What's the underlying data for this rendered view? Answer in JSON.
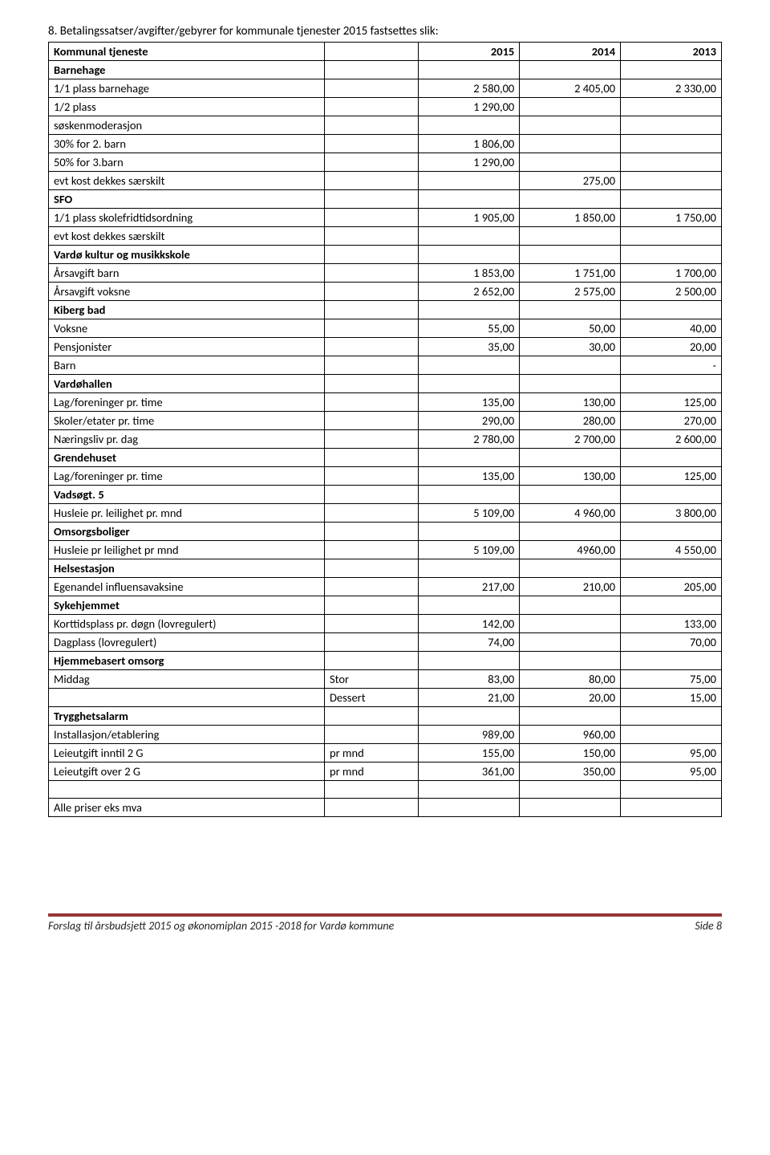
{
  "intro": "8. Betalingssatser/avgifter/gebyrer for kommunale tjenester 2015 fastsettes slik:",
  "header": {
    "c1": "Kommunal tjeneste",
    "c3": "2015",
    "c4": "2014",
    "c5": "2013"
  },
  "rows": [
    {
      "type": "section",
      "label": "Barnehage"
    },
    {
      "type": "data",
      "label": "1/1 plass barnehage",
      "v3": "2 580,00",
      "v4": "2 405,00",
      "v5": "2 330,00"
    },
    {
      "type": "data",
      "label": "1/2 plass",
      "v3": "1 290,00"
    },
    {
      "type": "label",
      "label": "søskenmoderasjon"
    },
    {
      "type": "data",
      "label": "30% for 2. barn",
      "v3": "1 806,00"
    },
    {
      "type": "data",
      "label": "50% for 3.barn",
      "v3": "1 290,00"
    },
    {
      "type": "data",
      "label": "evt kost dekkes særskilt",
      "v4": "275,00"
    },
    {
      "type": "section",
      "label": "SFO"
    },
    {
      "type": "data",
      "label": "1/1 plass skolefridtidsordning",
      "v3": "1 905,00",
      "v4": "1 850,00",
      "v5": "1 750,00"
    },
    {
      "type": "label",
      "label": "evt kost dekkes særskilt"
    },
    {
      "type": "section",
      "label": "Vardø kultur og musikkskole"
    },
    {
      "type": "data",
      "label": "Årsavgift barn",
      "v3": "1 853,00",
      "v4": "1 751,00",
      "v5": "1 700,00"
    },
    {
      "type": "data",
      "label": "Årsavgift voksne",
      "v3": "2 652,00",
      "v4": "2 575,00",
      "v5": "2 500,00"
    },
    {
      "type": "section",
      "label": "Kiberg bad"
    },
    {
      "type": "data",
      "label": "Voksne",
      "v3": "55,00",
      "v4": "50,00",
      "v5": "40,00"
    },
    {
      "type": "data",
      "label": "Pensjonister",
      "v3": "35,00",
      "v4": "30,00",
      "v5": "20,00"
    },
    {
      "type": "data",
      "label": "Barn",
      "v5": "-"
    },
    {
      "type": "section",
      "label": "Vardøhallen"
    },
    {
      "type": "data",
      "label": "Lag/foreninger pr. time",
      "v3": "135,00",
      "v4": "130,00",
      "v5": "125,00"
    },
    {
      "type": "data",
      "label": "Skoler/etater pr. time",
      "v3": "290,00",
      "v4": "280,00",
      "v5": "270,00"
    },
    {
      "type": "data",
      "label": "Næringsliv pr. dag",
      "v3": "2 780,00",
      "v4": "2 700,00",
      "v5": "2 600,00"
    },
    {
      "type": "section",
      "label": "Grendehuset"
    },
    {
      "type": "data",
      "label": "Lag/foreninger pr. time",
      "v3": "135,00",
      "v4": "130,00",
      "v5": "125,00"
    },
    {
      "type": "section",
      "label": "Vadsøgt. 5"
    },
    {
      "type": "data",
      "label": "Husleie pr. leilighet pr. mnd",
      "v3": "5 109,00",
      "v4": "4 960,00",
      "v5": "3 800,00"
    },
    {
      "type": "section",
      "label": "Omsorgsboliger"
    },
    {
      "type": "data",
      "label": "Husleie pr leilighet pr mnd",
      "v3": "5 109,00",
      "v4": "4960,00",
      "v5": "4 550,00"
    },
    {
      "type": "section",
      "label": "Helsestasjon"
    },
    {
      "type": "data",
      "label": "Egenandel influensavaksine",
      "v3": "217,00",
      "v4": "210,00",
      "v5": "205,00"
    },
    {
      "type": "section",
      "label": "Sykehjemmet"
    },
    {
      "type": "data",
      "label": "Korttidsplass pr. døgn (lovregulert)",
      "v3": "142,00",
      "v5": "133,00"
    },
    {
      "type": "data",
      "label": "Dagplass (lovregulert)",
      "v3": "74,00",
      "v5": "70,00"
    },
    {
      "type": "section",
      "label": "Hjemmebasert omsorg"
    },
    {
      "type": "data",
      "label": "Middag",
      "sub": "Stor",
      "v3": "83,00",
      "v4": "80,00",
      "v5": "75,00"
    },
    {
      "type": "data",
      "label": "",
      "sub": "Dessert",
      "v3": "21,00",
      "v4": "20,00",
      "v5": "15,00"
    },
    {
      "type": "section",
      "label": "Trygghetsalarm"
    },
    {
      "type": "data",
      "label": "Installasjon/etablering",
      "v3": "989,00",
      "v4": "960,00"
    },
    {
      "type": "data",
      "label": "Leieutgift inntil 2 G",
      "sub": "pr mnd",
      "v3": "155,00",
      "v4": "150,00",
      "v5": "95,00"
    },
    {
      "type": "data",
      "label": "Leieutgift over 2 G",
      "sub": "pr mnd",
      "v3": "361,00",
      "v4": "350,00",
      "v5": "95,00"
    },
    {
      "type": "blank"
    },
    {
      "type": "label",
      "label": "Alle priser eks mva"
    }
  ],
  "footer": {
    "left": "Forslag til årsbudsjett 2015 og økonomiplan 2015 -2018 for Vardø kommune",
    "right": "Side 8"
  },
  "colors": {
    "footer_border": "#943634"
  }
}
